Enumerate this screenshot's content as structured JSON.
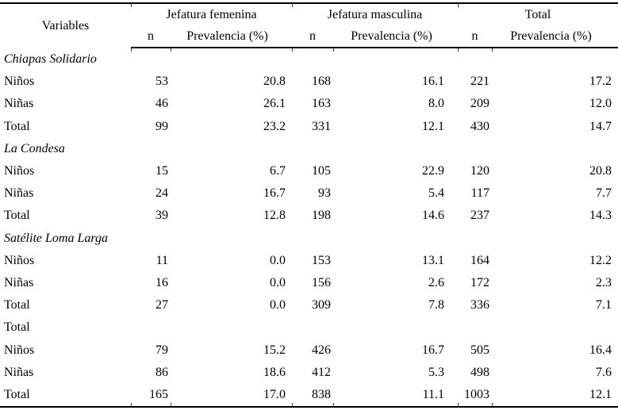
{
  "table": {
    "header": {
      "variables_label": "Variables",
      "group_labels": [
        "Jefatura femenina",
        "Jefatura masculina",
        "Total"
      ],
      "n_label": "n",
      "prevalencia_label": "Prevalencia (%)"
    },
    "sections": [
      {
        "title": "Chiapas Solidario",
        "title_italic": true,
        "rows": [
          {
            "label": "Niños",
            "values": [
              "53",
              "20.8",
              "168",
              "16.1",
              "221",
              "17.2"
            ]
          },
          {
            "label": "Niñas",
            "values": [
              "46",
              "26.1",
              "163",
              "8.0",
              "209",
              "12.0"
            ]
          },
          {
            "label": "Total",
            "values": [
              "99",
              "23.2",
              "331",
              "12.1",
              "430",
              "14.7"
            ]
          }
        ]
      },
      {
        "title": "La Condesa",
        "title_italic": true,
        "rows": [
          {
            "label": "Niños",
            "values": [
              "15",
              "6.7",
              "105",
              "22.9",
              "120",
              "20.8"
            ]
          },
          {
            "label": "Niñas",
            "values": [
              "24",
              "16.7",
              "93",
              "5.4",
              "117",
              "7.7"
            ]
          },
          {
            "label": "Total",
            "values": [
              "39",
              "12.8",
              "198",
              "14.6",
              "237",
              "14.3"
            ]
          }
        ]
      },
      {
        "title": "Satélite Loma Larga",
        "title_italic": true,
        "rows": [
          {
            "label": "Niños",
            "values": [
              "11",
              "0.0",
              "153",
              "13.1",
              "164",
              "12.2"
            ]
          },
          {
            "label": "Niñas",
            "values": [
              "16",
              "0.0",
              "156",
              "2.6",
              "172",
              "2.3"
            ]
          },
          {
            "label": "Total",
            "values": [
              "27",
              "0.0",
              "309",
              "7.8",
              "336",
              "7.1"
            ]
          }
        ]
      },
      {
        "title": "Total",
        "title_italic": false,
        "rows": [
          {
            "label": "Niños",
            "values": [
              "79",
              "15.2",
              "426",
              "16.7",
              "505",
              "16.4"
            ]
          },
          {
            "label": "Niñas",
            "values": [
              "86",
              "18.6",
              "412",
              "5.3",
              "498",
              "7.6"
            ]
          },
          {
            "label": "Total",
            "values": [
              "165",
              "17.0",
              "838",
              "11.1",
              "1003",
              "12.1"
            ]
          }
        ]
      }
    ]
  }
}
